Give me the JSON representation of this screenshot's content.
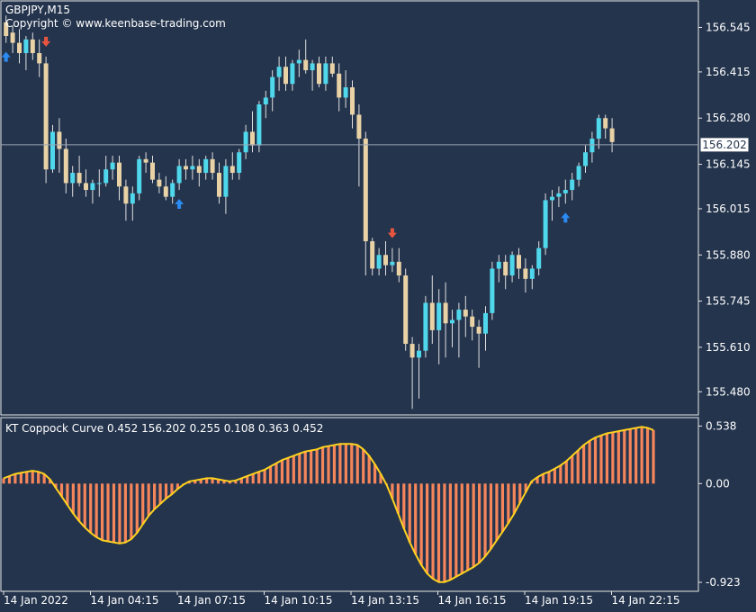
{
  "header": {
    "symbol": "GBPJPY,M15",
    "copyright": "Copyright © www.keenbase-trading.com"
  },
  "indicator": {
    "label": "KT Coppock Curve 0.452 156.202 0.255 0.108 0.363 0.452"
  },
  "colors": {
    "background": "#24344d",
    "frame": "#e8e8e8",
    "bull": "#4fd8ec",
    "bear": "#e8d2a6",
    "wick": "#e0e0e0",
    "buy_arrow": "#2a8bf2",
    "sell_arrow": "#e8553f",
    "histogram": "#f5855a",
    "curve": "#ffd21e",
    "text": "#ffffff"
  },
  "chart_data": [
    {
      "type": "candlestick",
      "title": "GBPJPY,M15",
      "ylim": [
        155.415,
        156.62
      ],
      "price_ticks": [
        "156.545",
        "156.415",
        "156.280",
        "156.145",
        "156.015",
        "155.880",
        "155.745",
        "155.610",
        "155.480"
      ],
      "current_price": "156.202",
      "x_labels": [
        "14 Jan 2022",
        "14 Jan 04:15",
        "14 Jan 07:15",
        "14 Jan 10:15",
        "14 Jan 13:15",
        "14 Jan 16:15",
        "14 Jan 19:15",
        "14 Jan 22:15"
      ],
      "ohlc": [
        [
          156.56,
          156.58,
          156.5,
          156.52
        ],
        [
          156.53,
          156.55,
          156.47,
          156.5
        ],
        [
          156.5,
          156.54,
          156.44,
          156.47
        ],
        [
          156.47,
          156.52,
          156.42,
          156.51
        ],
        [
          156.51,
          156.53,
          156.45,
          156.47
        ],
        [
          156.47,
          156.51,
          156.4,
          156.44
        ],
        [
          156.44,
          156.46,
          156.09,
          156.13
        ],
        [
          156.13,
          156.26,
          156.12,
          156.24
        ],
        [
          156.24,
          156.28,
          156.12,
          156.19
        ],
        [
          156.19,
          156.22,
          156.06,
          156.09
        ],
        [
          156.09,
          156.14,
          156.05,
          156.12
        ],
        [
          156.12,
          156.17,
          156.08,
          156.09
        ],
        [
          156.09,
          156.13,
          156.05,
          156.07
        ],
        [
          156.07,
          156.1,
          156.03,
          156.09
        ],
        [
          156.09,
          156.13,
          156.05,
          156.09
        ],
        [
          156.09,
          156.17,
          156.08,
          156.13
        ],
        [
          156.13,
          156.17,
          156.1,
          156.15
        ],
        [
          156.15,
          156.17,
          156.04,
          156.08
        ],
        [
          156.08,
          156.1,
          155.98,
          156.03
        ],
        [
          156.03,
          156.08,
          155.98,
          156.06
        ],
        [
          156.06,
          156.17,
          156.04,
          156.16
        ],
        [
          156.16,
          156.18,
          156.12,
          156.15
        ],
        [
          156.15,
          156.17,
          156.09,
          156.1
        ],
        [
          156.1,
          156.12,
          156.06,
          156.08
        ],
        [
          156.08,
          156.11,
          156.04,
          156.05
        ],
        [
          156.05,
          156.1,
          156.03,
          156.09
        ],
        [
          156.09,
          156.16,
          156.07,
          156.14
        ],
        [
          156.14,
          156.16,
          156.1,
          156.13
        ],
        [
          156.13,
          156.17,
          156.1,
          156.14
        ],
        [
          156.14,
          156.16,
          156.08,
          156.12
        ],
        [
          156.12,
          156.17,
          156.1,
          156.16
        ],
        [
          156.16,
          156.18,
          156.1,
          156.12
        ],
        [
          156.12,
          156.15,
          156.03,
          156.05
        ],
        [
          156.05,
          156.16,
          156.0,
          156.14
        ],
        [
          156.14,
          156.18,
          156.1,
          156.12
        ],
        [
          156.12,
          156.19,
          156.1,
          156.18
        ],
        [
          156.18,
          156.26,
          156.16,
          156.24
        ],
        [
          156.24,
          156.3,
          156.18,
          156.2
        ],
        [
          156.2,
          156.33,
          156.18,
          156.32
        ],
        [
          156.32,
          156.36,
          156.28,
          156.34
        ],
        [
          156.34,
          156.42,
          156.3,
          156.4
        ],
        [
          156.4,
          156.46,
          156.36,
          156.43
        ],
        [
          156.43,
          156.46,
          156.36,
          156.38
        ],
        [
          156.38,
          156.45,
          156.36,
          156.44
        ],
        [
          156.44,
          156.48,
          156.4,
          156.45
        ],
        [
          156.45,
          156.51,
          156.41,
          156.42
        ],
        [
          156.42,
          156.45,
          156.36,
          156.44
        ],
        [
          156.44,
          156.46,
          156.37,
          156.38
        ],
        [
          156.38,
          156.46,
          156.36,
          156.44
        ],
        [
          156.44,
          156.46,
          156.4,
          156.41
        ],
        [
          156.41,
          156.44,
          156.3,
          156.34
        ],
        [
          156.34,
          156.42,
          156.31,
          156.37
        ],
        [
          156.37,
          156.39,
          156.25,
          156.29
        ],
        [
          156.29,
          156.32,
          156.08,
          156.22
        ],
        [
          156.22,
          156.24,
          155.82,
          155.92
        ],
        [
          155.92,
          155.93,
          155.82,
          155.84
        ],
        [
          155.84,
          155.9,
          155.82,
          155.88
        ],
        [
          155.88,
          155.92,
          155.82,
          155.85
        ],
        [
          155.85,
          155.9,
          155.83,
          155.86
        ],
        [
          155.86,
          155.9,
          155.8,
          155.82
        ],
        [
          155.82,
          155.84,
          155.6,
          155.62
        ],
        [
          155.62,
          155.64,
          155.43,
          155.58
        ],
        [
          155.58,
          155.62,
          155.46,
          155.6
        ],
        [
          155.6,
          155.76,
          155.58,
          155.74
        ],
        [
          155.74,
          155.82,
          155.62,
          155.66
        ],
        [
          155.66,
          155.78,
          155.56,
          155.74
        ],
        [
          155.74,
          155.8,
          155.58,
          155.68
        ],
        [
          155.68,
          155.72,
          155.61,
          155.69
        ],
        [
          155.69,
          155.74,
          155.58,
          155.72
        ],
        [
          155.72,
          155.76,
          155.64,
          155.7
        ],
        [
          155.7,
          155.72,
          155.63,
          155.67
        ],
        [
          155.67,
          155.69,
          155.55,
          155.65
        ],
        [
          155.65,
          155.73,
          155.6,
          155.71
        ],
        [
          155.71,
          155.86,
          155.69,
          155.84
        ],
        [
          155.84,
          155.88,
          155.8,
          155.86
        ],
        [
          155.86,
          155.88,
          155.78,
          155.82
        ],
        [
          155.82,
          155.89,
          155.8,
          155.88
        ],
        [
          155.88,
          155.9,
          155.81,
          155.84
        ],
        [
          155.84,
          155.87,
          155.77,
          155.81
        ],
        [
          155.81,
          155.85,
          155.78,
          155.84
        ],
        [
          155.84,
          155.92,
          155.82,
          155.9
        ],
        [
          155.9,
          156.06,
          155.88,
          156.04
        ],
        [
          156.04,
          156.07,
          155.98,
          156.05
        ],
        [
          156.05,
          156.08,
          156.02,
          156.06
        ],
        [
          156.06,
          156.1,
          156.03,
          156.07
        ],
        [
          156.07,
          156.12,
          156.04,
          156.1
        ],
        [
          156.1,
          156.15,
          156.08,
          156.14
        ],
        [
          156.14,
          156.2,
          156.12,
          156.18
        ],
        [
          156.18,
          156.24,
          156.15,
          156.22
        ],
        [
          156.22,
          156.29,
          156.19,
          156.28
        ],
        [
          156.28,
          156.29,
          156.22,
          156.25
        ],
        [
          156.25,
          156.28,
          156.18,
          156.21
        ]
      ],
      "signals": [
        {
          "index": 0,
          "type": "buy"
        },
        {
          "index": 6,
          "type": "sell"
        },
        {
          "index": 26,
          "type": "buy"
        },
        {
          "index": 58,
          "type": "sell"
        },
        {
          "index": 84,
          "type": "buy"
        }
      ]
    },
    {
      "type": "bar",
      "title": "KT Coppock Curve 0.452 156.202 0.255 0.108 0.363 0.452",
      "ylim": [
        -0.99,
        0.6
      ],
      "y_ticks": [
        "0.538",
        "0.00",
        "-0.923"
      ],
      "values": [
        0.05,
        0.07,
        0.09,
        0.1,
        0.11,
        0.12,
        0.11,
        0.09,
        0.04,
        -0.04,
        -0.12,
        -0.2,
        -0.28,
        -0.35,
        -0.41,
        -0.46,
        -0.5,
        -0.53,
        -0.54,
        -0.55,
        -0.56,
        -0.55,
        -0.52,
        -0.46,
        -0.38,
        -0.3,
        -0.24,
        -0.19,
        -0.14,
        -0.1,
        -0.05,
        -0.01,
        0.02,
        0.03,
        0.04,
        0.05,
        0.05,
        0.04,
        0.03,
        0.02,
        0.03,
        0.05,
        0.07,
        0.09,
        0.11,
        0.13,
        0.16,
        0.19,
        0.22,
        0.24,
        0.26,
        0.28,
        0.3,
        0.31,
        0.32,
        0.34,
        0.35,
        0.36,
        0.37,
        0.37,
        0.37,
        0.36,
        0.32,
        0.26,
        0.18,
        0.09,
        -0.01,
        -0.14,
        -0.28,
        -0.42,
        -0.55,
        -0.66,
        -0.76,
        -0.84,
        -0.89,
        -0.92,
        -0.92,
        -0.9,
        -0.87,
        -0.84,
        -0.81,
        -0.78,
        -0.74,
        -0.68,
        -0.61,
        -0.53,
        -0.45,
        -0.37,
        -0.28,
        -0.18,
        -0.08,
        0.02,
        0.06,
        0.09,
        0.11,
        0.14,
        0.17,
        0.21,
        0.26,
        0.31,
        0.36,
        0.4,
        0.43,
        0.45,
        0.47,
        0.48,
        0.49,
        0.5,
        0.51,
        0.52,
        0.53,
        0.52,
        0.5
      ]
    }
  ]
}
